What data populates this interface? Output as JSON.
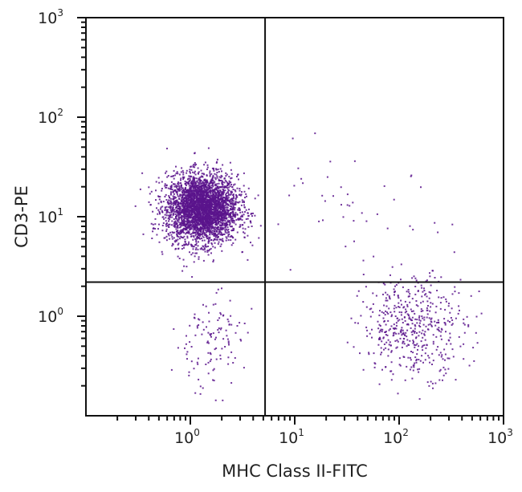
{
  "chart_data": {
    "type": "scatter",
    "title": "",
    "xlabel": "MHC Class II-FITC",
    "ylabel": "CD3-PE",
    "x_scale": "log",
    "y_scale": "log",
    "xlim": [
      0.1,
      1000
    ],
    "ylim": [
      0.1,
      1000
    ],
    "x_ticks": [
      {
        "base": "10",
        "exp": "0",
        "value": 1
      },
      {
        "base": "10",
        "exp": "1",
        "value": 10
      },
      {
        "base": "10",
        "exp": "2",
        "value": 100
      },
      {
        "base": "10",
        "exp": "3",
        "value": 1000
      }
    ],
    "y_ticks": [
      {
        "base": "10",
        "exp": "0",
        "value": 1
      },
      {
        "base": "10",
        "exp": "1",
        "value": 10
      },
      {
        "base": "10",
        "exp": "2",
        "value": 100
      },
      {
        "base": "10",
        "exp": "3",
        "value": 1000
      }
    ],
    "grid": false,
    "legend": "none",
    "quadrant_gates": {
      "x": 5.2,
      "y": 2.2
    },
    "point_color": "#5a148c",
    "populations": [
      {
        "quadrant": "upper-left",
        "center": [
          1.3,
          12
        ],
        "spread_decades": [
          0.17,
          0.17
        ],
        "approx_count": 3500
      },
      {
        "quadrant": "lower-right",
        "center": [
          140,
          0.8
        ],
        "spread_decades": [
          0.25,
          0.25
        ],
        "approx_count": 500
      },
      {
        "quadrant": "lower-left",
        "center": [
          1.5,
          0.55
        ],
        "spread_decades": [
          0.17,
          0.25
        ],
        "approx_count": 120
      },
      {
        "quadrant": "upper-right",
        "center": [
          30,
          10
        ],
        "spread_decades": [
          0.5,
          0.3
        ],
        "approx_count": 45
      }
    ]
  }
}
